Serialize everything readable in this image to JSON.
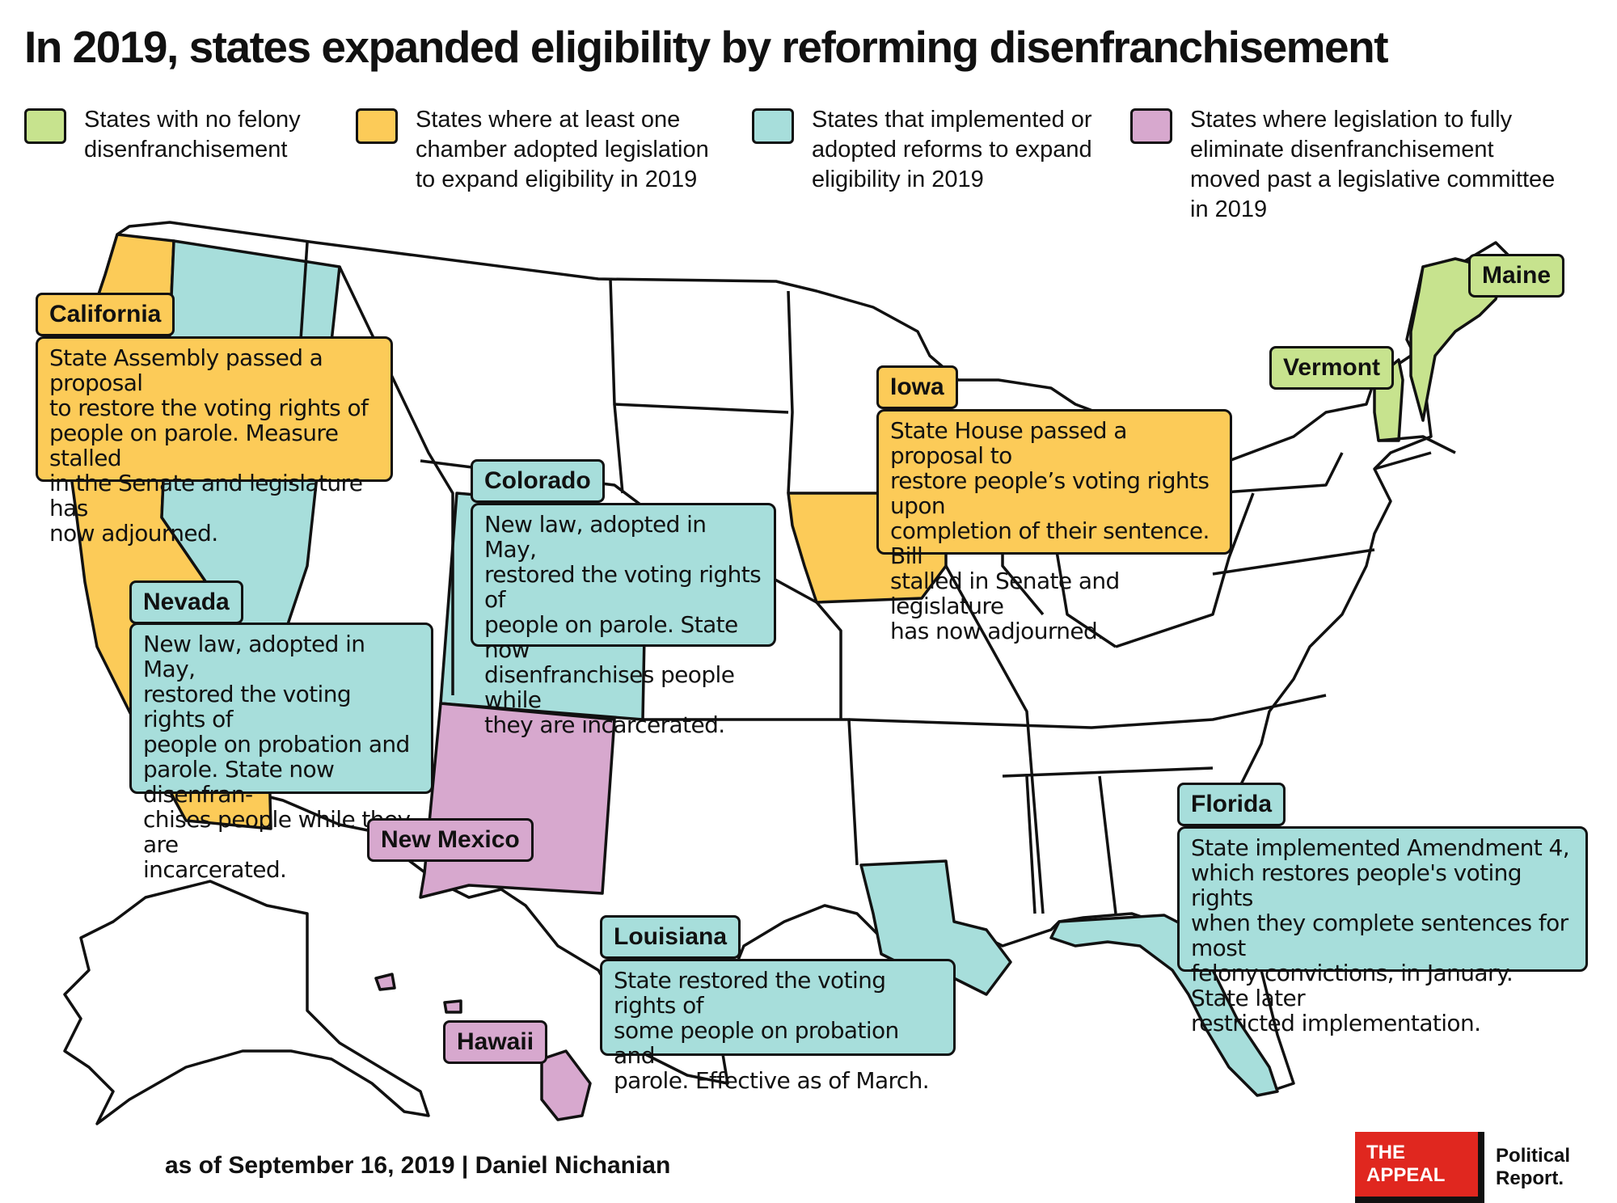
{
  "title": "In 2019, states expanded eligibility by reforming disenfranchisement",
  "colors": {
    "green": "#c7e38e",
    "yellow": "#fccb58",
    "teal": "#a7dedb",
    "purple": "#d7a8ce",
    "white": "#ffffff",
    "logo_red": "#e0271f"
  },
  "legend": [
    {
      "label": "States with no felony\ndisenfranchisement",
      "color": "green"
    },
    {
      "label": "States where at least one\nchamber adopted legislation\nto expand eligibility in 2019",
      "color": "yellow"
    },
    {
      "label": "States that implemented or\nadopted reforms to expand\neligibility in 2019",
      "color": "teal"
    },
    {
      "label": "States where legislation to fully\neliminate disenfranchisement\nmoved past a legislative committee\nin 2019",
      "color": "purple"
    }
  ],
  "callouts": {
    "california": {
      "name": "California",
      "color": "yellow",
      "text": "State Assembly passed a proposal\nto restore the voting rights of\npeople on parole. Measure stalled\nin the Senate and legislature has\nnow adjourned."
    },
    "colorado": {
      "name": "Colorado",
      "color": "teal",
      "text": "New law, adopted in May,\nrestored the voting rights of\npeople on parole. State now\ndisenfranchises people while\nthey are incarcerated."
    },
    "nevada": {
      "name": "Nevada",
      "color": "teal",
      "text": "New law, adopted in May,\nrestored the voting rights of\npeople on probation and\nparole. State now disenfran-\nchises people while they are\nincarcerated."
    },
    "iowa": {
      "name": "Iowa",
      "color": "yellow",
      "text": "State House passed a proposal to\nrestore people’s voting rights upon\ncompletion of their sentence. Bill\nstalled in Senate and legislature\nhas now adjourned."
    },
    "florida": {
      "name": "Florida",
      "color": "teal",
      "text": "State implemented Amendment 4,\nwhich restores people's voting rights\nwhen they complete sentences for most\nfelony convictions, in January. State later\nrestricted implementation."
    },
    "louisiana": {
      "name": "Louisiana",
      "color": "teal",
      "text": "State restored the voting rights of\nsome people on probation and\nparole. Effective as of March."
    },
    "new_mexico": {
      "name": "New Mexico",
      "color": "purple"
    },
    "hawaii": {
      "name": "Hawaii",
      "color": "purple"
    },
    "vermont": {
      "name": "Vermont",
      "color": "green"
    },
    "maine": {
      "name": "Maine",
      "color": "green"
    }
  },
  "states_by_category": {
    "green": [
      "Maine",
      "Vermont"
    ],
    "yellow": [
      "California",
      "Iowa"
    ],
    "teal": [
      "Nevada",
      "Colorado",
      "Louisiana",
      "Florida"
    ],
    "purple": [
      "New Mexico",
      "Hawaii"
    ]
  },
  "credit": "as of September 16, 2019 | Daniel Nichanian",
  "logo": {
    "mark": "THE APPEAL",
    "text": "Political Report."
  }
}
